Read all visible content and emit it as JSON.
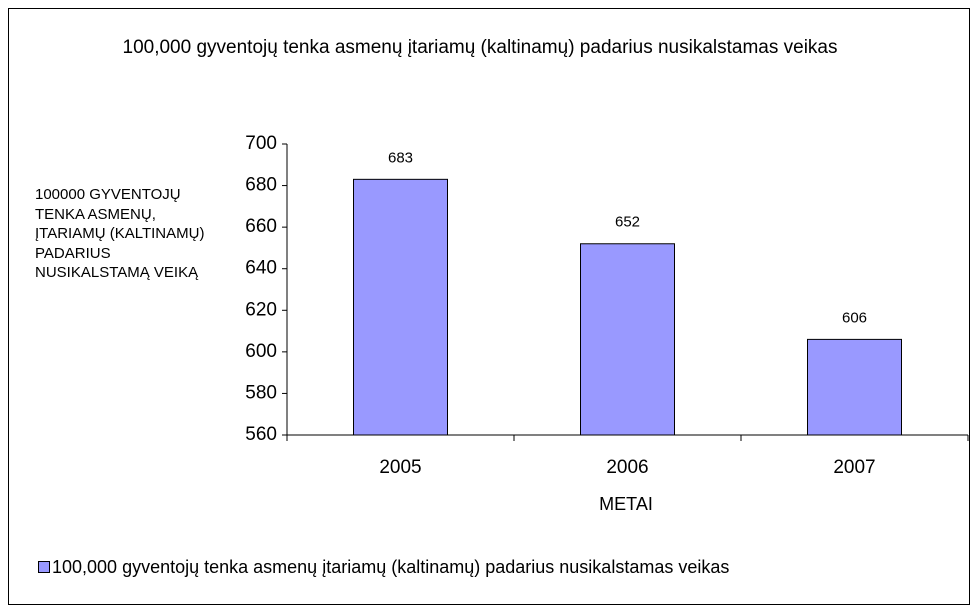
{
  "chart_data": {
    "type": "bar",
    "title": "100,000 gyventojų tenka asmenų įtariamų (kaltinamų) padarius nusikalstamas veikas",
    "y_axis_label": "100000 GYVENTOJŲ TENKA ASMENŲ, ĮTARIAMŲ (KALTINAMŲ) PADARIUS NUSIKALSTAMĄ VEIKĄ",
    "x_axis_label": "METAI",
    "categories": [
      "2005",
      "2006",
      "2007"
    ],
    "series": [
      {
        "name": "100,000 gyventojų tenka asmenų įtariamų (kaltinamų) padarius nusikalstamas veikas",
        "color": "#9999ff",
        "values": [
          683,
          652,
          606
        ]
      }
    ],
    "ylim": [
      560,
      700
    ],
    "yticks": [
      560,
      580,
      600,
      620,
      640,
      660,
      680,
      700
    ],
    "legend": "bottom"
  }
}
